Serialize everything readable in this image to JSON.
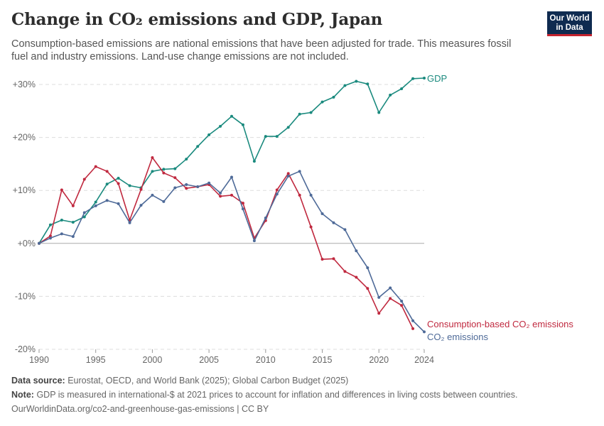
{
  "header": {
    "title": "Change in CO₂ emissions and GDP, Japan",
    "subtitle": "Consumption-based emissions are national emissions that have been adjusted for trade. This measures fossil fuel and industry emissions. Land-use change emissions are not included.",
    "logo_line1": "Our World",
    "logo_line2": "in Data"
  },
  "footer": {
    "source_label": "Data source:",
    "source_text": "Eurostat, OECD, and World Bank (2025); Global Carbon Budget (2025)",
    "note_label": "Note:",
    "note_text": "GDP is measured in international-$ at 2021 prices to account for inflation and differences in living costs between countries.",
    "url_text": "OurWorldinData.org/co2-and-greenhouse-gas-emissions | CC BY"
  },
  "colors": {
    "gdp": "#1a8a7e",
    "consumption": "#c0293f",
    "co2": "#4e6a98",
    "grid": "#dddddd",
    "zero": "#aaaaaa"
  },
  "chart_data": {
    "type": "line",
    "title": "Change in CO₂ emissions and GDP, Japan",
    "ylim": [
      -20,
      30
    ],
    "xlim": [
      1990,
      2024
    ],
    "y_ticks": [
      {
        "value": 30,
        "label": "+30%"
      },
      {
        "value": 20,
        "label": "+20%"
      },
      {
        "value": 10,
        "label": "+10%"
      },
      {
        "value": 0,
        "label": "+0%"
      },
      {
        "value": -10,
        "label": "-10%"
      },
      {
        "value": -20,
        "label": "-20%"
      }
    ],
    "x_ticks": [
      {
        "value": 1990,
        "label": "1990"
      },
      {
        "value": 1995,
        "label": "1995"
      },
      {
        "value": 2000,
        "label": "2000"
      },
      {
        "value": 2005,
        "label": "2005"
      },
      {
        "value": 2010,
        "label": "2010"
      },
      {
        "value": 2015,
        "label": "2015"
      },
      {
        "value": 2020,
        "label": "2020"
      },
      {
        "value": 2024,
        "label": "2024"
      }
    ],
    "grid": true,
    "series": [
      {
        "name": "GDP",
        "color_key": "gdp",
        "x": [
          1990,
          1991,
          1992,
          1993,
          1994,
          1995,
          1996,
          1997,
          1998,
          1999,
          2000,
          2001,
          2002,
          2003,
          2004,
          2005,
          2006,
          2007,
          2008,
          2009,
          2010,
          2011,
          2012,
          2013,
          2014,
          2015,
          2016,
          2017,
          2018,
          2019,
          2020,
          2021,
          2022,
          2023,
          2024
        ],
        "values": [
          0,
          3.5,
          4.4,
          4.0,
          5.0,
          7.8,
          11.2,
          12.3,
          10.9,
          10.5,
          13.6,
          14.0,
          14.1,
          15.9,
          18.3,
          20.5,
          22.1,
          24.0,
          22.4,
          15.5,
          20.2,
          20.2,
          21.9,
          24.4,
          24.7,
          26.7,
          27.6,
          29.8,
          30.6,
          30.1,
          24.7,
          28.0,
          29.2,
          31.1,
          31.2
        ]
      },
      {
        "name": "Consumption-based CO₂ emissions",
        "color_key": "consumption",
        "x": [
          1990,
          1991,
          1992,
          1993,
          1994,
          1995,
          1996,
          1997,
          1998,
          1999,
          2000,
          2001,
          2002,
          2003,
          2004,
          2005,
          2006,
          2007,
          2008,
          2009,
          2010,
          2011,
          2012,
          2013,
          2014,
          2015,
          2016,
          2017,
          2018,
          2019,
          2020,
          2021,
          2022,
          2023
        ],
        "values": [
          0,
          1.4,
          10.1,
          7.1,
          12.1,
          14.5,
          13.6,
          11.3,
          4.4,
          10.2,
          16.2,
          13.3,
          12.4,
          10.4,
          10.7,
          11.1,
          8.9,
          9.1,
          7.6,
          1.0,
          4.3,
          10.1,
          13.2,
          9.1,
          3.1,
          -3.0,
          -2.9,
          -5.3,
          -6.4,
          -8.5,
          -13.2,
          -10.4,
          -11.7,
          -16.1
        ]
      },
      {
        "name": "CO₂ emissions",
        "color_key": "co2",
        "x": [
          1990,
          1991,
          1992,
          1993,
          1994,
          1995,
          1996,
          1997,
          1998,
          1999,
          2000,
          2001,
          2002,
          2003,
          2004,
          2005,
          2006,
          2007,
          2008,
          2009,
          2010,
          2011,
          2012,
          2013,
          2014,
          2015,
          2016,
          2017,
          2018,
          2019,
          2020,
          2021,
          2022,
          2023,
          2024
        ],
        "values": [
          0,
          1.0,
          1.8,
          1.3,
          5.8,
          7.1,
          8.1,
          7.5,
          3.9,
          7.2,
          9.1,
          7.9,
          10.5,
          11.1,
          10.7,
          11.4,
          9.5,
          12.5,
          6.5,
          0.5,
          4.8,
          9.3,
          12.7,
          13.6,
          9.1,
          5.6,
          3.9,
          2.6,
          -1.4,
          -4.6,
          -10.2,
          -8.4,
          -10.9,
          -14.6,
          -16.7
        ]
      }
    ]
  }
}
